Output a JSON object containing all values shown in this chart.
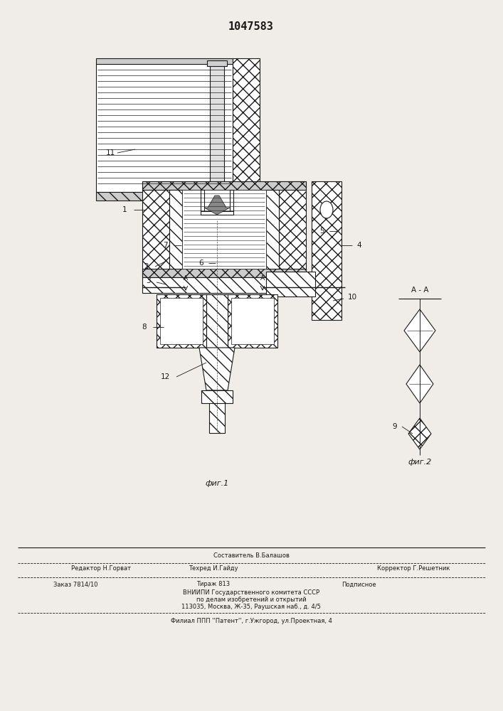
{
  "patent_number": "1047583",
  "bg": "#f0ede8",
  "lc": "#1a1a1a",
  "fig1_caption": "фиг.1",
  "fig2_caption": "фиг.2",
  "footer": {
    "composer": "Составитель В.Балашов",
    "editor": "Редактор Н.Горват",
    "techred": "Техред И.Гайду",
    "corrector": "Корректор Г.Решетник",
    "order": "Заказ 7814/10",
    "tirazh": "Тираж 813",
    "podp": "Подписное",
    "vniip1": "ВНИИПИ Государственного комитета СССР",
    "vniip2": "по делам изобретений и открытий",
    "addr": "113035, Москва, Ж-35, Раушская наб., д. 4/5",
    "filial": "Филиал ППП ''Патент'', г.Ужгород, ул.Проектная, 4"
  }
}
